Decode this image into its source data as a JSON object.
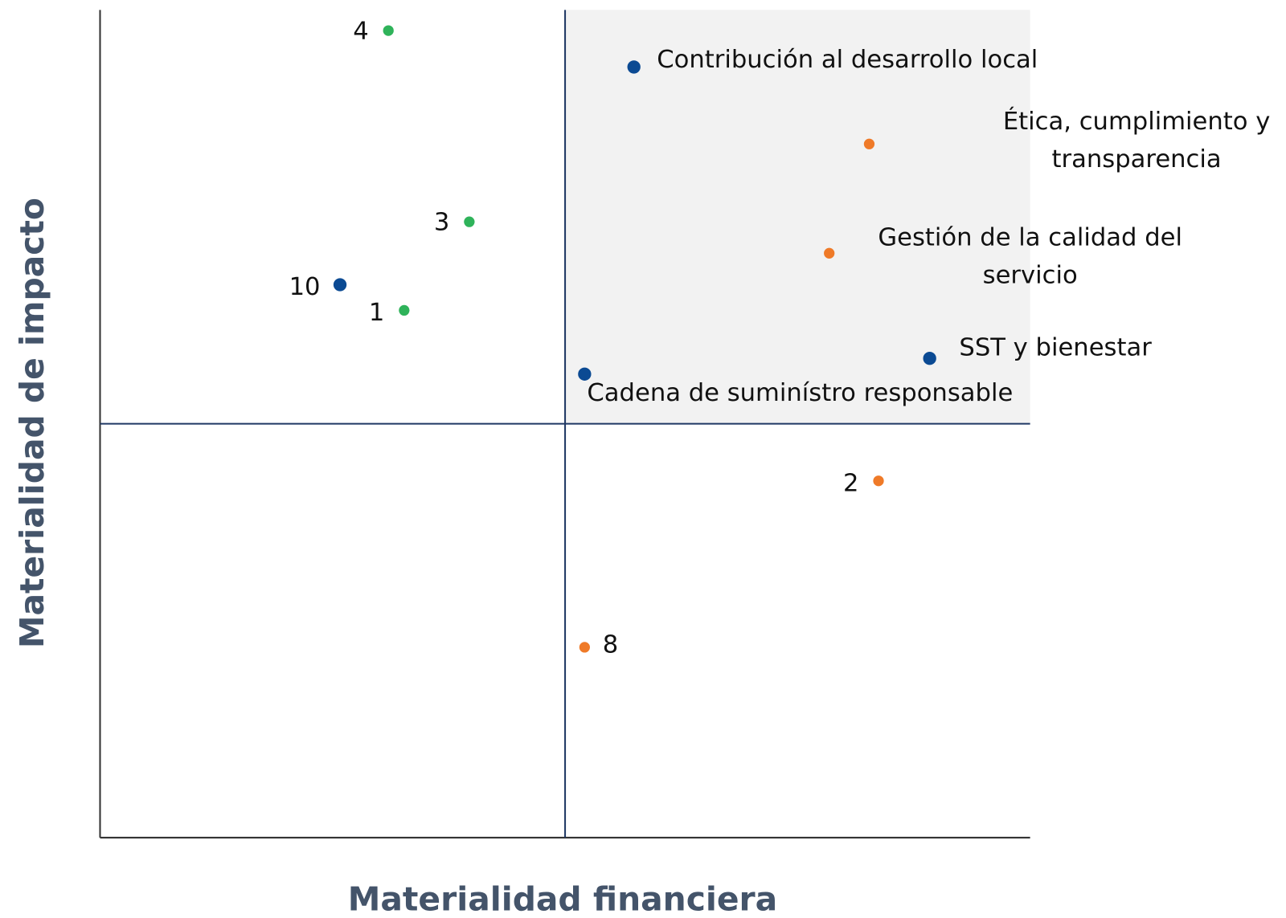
{
  "chart_data": {
    "type": "scatter",
    "xlabel": "Materialidad financiera",
    "ylabel": "Materialidad de impacto",
    "xlim": [
      0,
      10
    ],
    "ylim": [
      0,
      10
    ],
    "x_divider": 5,
    "y_divider": 5,
    "highlight_quadrant": "top-right",
    "highlight_color": "#f2f2f2",
    "divider_color": "#1f3864",
    "x": [
      3.1,
      3.97,
      2.58,
      3.27,
      5.74,
      8.27,
      7.84,
      8.92,
      5.21,
      8.37,
      5.21
    ],
    "values": [
      9.75,
      7.44,
      6.68,
      6.37,
      9.31,
      8.38,
      7.06,
      5.79,
      5.6,
      4.31,
      2.3
    ],
    "colors": [
      "#2fb35a",
      "#2fb35a",
      "#0b4a93",
      "#2fb35a",
      "#0b4a93",
      "#ef7a28",
      "#ef7a28",
      "#0b4a93",
      "#0b4a93",
      "#ef7a28",
      "#ef7a28"
    ],
    "labels": [
      [
        "4"
      ],
      [
        "3"
      ],
      [
        "10"
      ],
      [
        "1"
      ],
      [
        "Contribución al desarrollo local"
      ],
      [
        "Ética, cumplimiento y",
        "transparencia"
      ],
      [
        "Gestión de la calidad del",
        "servicio"
      ],
      [
        "SST y bienestar"
      ],
      [
        "Cadena de suminístro responsable"
      ],
      [
        "2"
      ],
      [
        "8"
      ]
    ]
  }
}
